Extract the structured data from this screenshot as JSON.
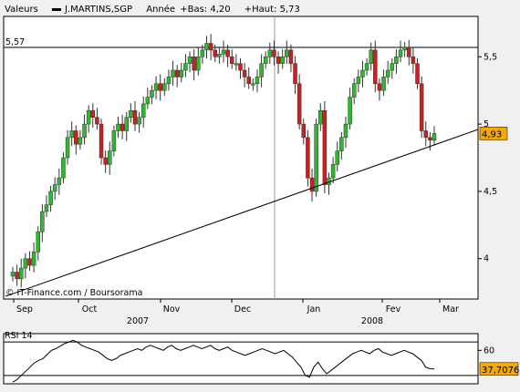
{
  "header": {
    "label": "Valeurs",
    "symbol": "J.MARTINS,SGP",
    "annee_label": "Année",
    "bas": "+Bas: 4,20",
    "haut": "+Haut: 5,73"
  },
  "source_label": "© IT-Finance.com / Boursorama",
  "chart_data": [
    {
      "type": "candlestick",
      "title": "J.MARTINS,SGP",
      "ylim": [
        3.7,
        5.8
      ],
      "y_ticks": [
        "4",
        "4,5",
        "5",
        "5,5"
      ],
      "y_tick_values": [
        4,
        4.5,
        5,
        5.5
      ],
      "x_months": [
        "Sep",
        "Oct",
        "Nov",
        "Dec",
        "Jan",
        "Fev",
        "Mar"
      ],
      "x_years": [
        "2007",
        "2008"
      ],
      "reference_line": {
        "value": 5.57,
        "label": "5,57"
      },
      "last_value": {
        "value": 4.93,
        "label": "4,93"
      },
      "trendline": {
        "start": 3.72,
        "end": 4.96
      },
      "colors": {
        "up": "#2eb82e",
        "down": "#cc1f1f",
        "last_box": "#f5a800"
      },
      "closes": [
        3.9,
        3.85,
        3.93,
        4.0,
        3.95,
        4.05,
        4.2,
        4.35,
        4.4,
        4.5,
        4.55,
        4.6,
        4.75,
        4.9,
        4.95,
        4.85,
        4.9,
        5.0,
        5.1,
        5.05,
        5.0,
        4.75,
        4.7,
        4.8,
        4.95,
        5.0,
        4.95,
        5.05,
        5.1,
        5.0,
        5.05,
        5.15,
        5.2,
        5.25,
        5.3,
        5.25,
        5.3,
        5.35,
        5.4,
        5.35,
        5.4,
        5.45,
        5.5,
        5.4,
        5.5,
        5.55,
        5.6,
        5.55,
        5.5,
        5.52,
        5.55,
        5.5,
        5.45,
        5.45,
        5.4,
        5.35,
        5.3,
        5.3,
        5.35,
        5.45,
        5.5,
        5.55,
        5.5,
        5.45,
        5.5,
        5.55,
        5.45,
        5.3,
        5.0,
        4.9,
        4.6,
        4.5,
        5.0,
        5.1,
        4.55,
        4.6,
        4.7,
        4.8,
        4.9,
        5.0,
        5.2,
        5.3,
        5.35,
        5.4,
        5.45,
        5.55,
        5.3,
        5.25,
        5.35,
        5.4,
        5.45,
        5.5,
        5.55,
        5.57,
        5.5,
        5.45,
        5.3,
        4.95,
        4.9,
        4.88,
        4.93
      ]
    },
    {
      "type": "line",
      "title": "RSI 14",
      "ylim": [
        20,
        80
      ],
      "y_ticks": [
        "60"
      ],
      "y_tick_values": [
        60
      ],
      "reference_lines": [
        70,
        30
      ],
      "last_value": {
        "value": 37.7076,
        "label": "37,7076"
      },
      "values": [
        22,
        25,
        30,
        35,
        40,
        45,
        48,
        50,
        55,
        60,
        62,
        65,
        68,
        70,
        72,
        70,
        66,
        64,
        62,
        60,
        58,
        54,
        50,
        48,
        50,
        54,
        56,
        58,
        60,
        62,
        60,
        64,
        66,
        64,
        62,
        60,
        64,
        66,
        62,
        60,
        62,
        64,
        66,
        64,
        62,
        64,
        66,
        62,
        60,
        62,
        64,
        60,
        58,
        56,
        54,
        56,
        58,
        60,
        62,
        60,
        58,
        56,
        58,
        60,
        56,
        52,
        46,
        40,
        30,
        28,
        40,
        46,
        38,
        32,
        36,
        40,
        44,
        48,
        52,
        56,
        58,
        60,
        58,
        56,
        60,
        62,
        58,
        56,
        54,
        56,
        58,
        60,
        58,
        56,
        52,
        48,
        40,
        38,
        37.7
      ]
    }
  ]
}
